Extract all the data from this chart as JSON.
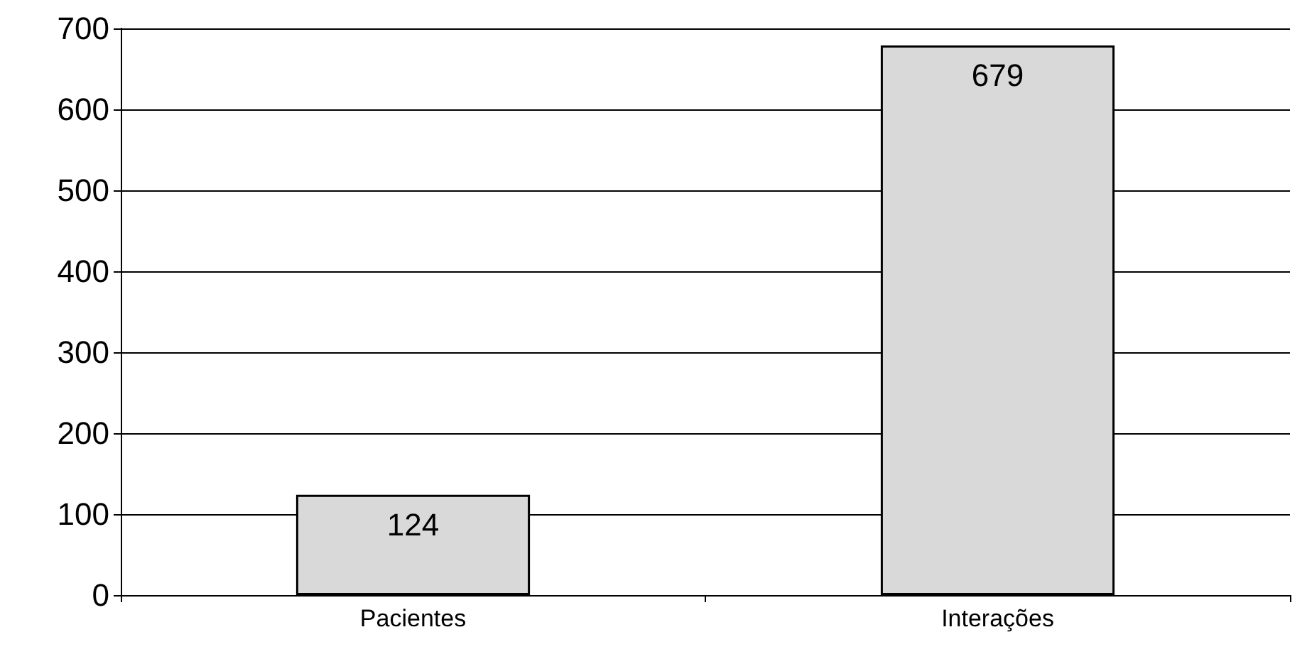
{
  "chart_data": {
    "type": "bar",
    "categories": [
      "Pacientes",
      "Interações"
    ],
    "values": [
      124,
      679
    ],
    "color": "#d9d9d9",
    "ylim": [
      0,
      700
    ],
    "yticks": [
      0,
      100,
      200,
      300,
      400,
      500,
      600,
      700
    ],
    "grid": "y",
    "data_labels": true
  }
}
